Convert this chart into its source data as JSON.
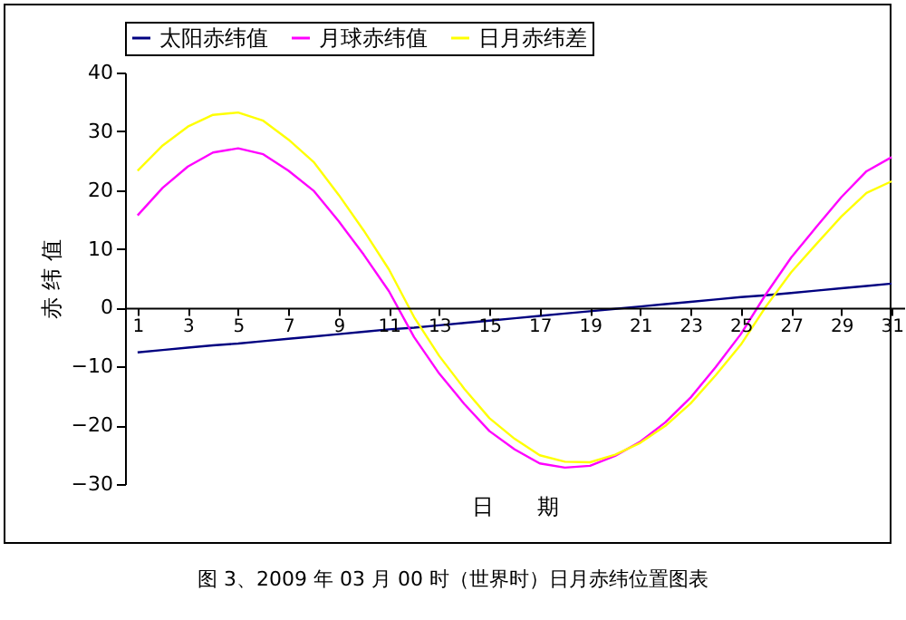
{
  "chart_data": {
    "type": "line",
    "ylabel": "赤 纬 值",
    "xlabel": "日　　期",
    "annotations": [
      "图 3、2009 年 03 月 00 时（世界时）日月赤纬位置图表"
    ],
    "x": [
      1,
      2,
      3,
      4,
      5,
      6,
      7,
      8,
      9,
      10,
      11,
      12,
      13,
      14,
      15,
      16,
      17,
      18,
      19,
      20,
      21,
      22,
      23,
      24,
      25,
      26,
      27,
      28,
      29,
      30,
      31
    ],
    "xlim": [
      0.5,
      31.5
    ],
    "xticks": [
      1,
      3,
      5,
      7,
      9,
      11,
      13,
      15,
      17,
      19,
      21,
      23,
      25,
      27,
      29,
      31
    ],
    "ylim": [
      -30,
      40
    ],
    "yticks": [
      -30,
      -20,
      -10,
      0,
      10,
      20,
      30,
      40
    ],
    "grid": false,
    "legend": "top",
    "marker": "none",
    "line_style": "solid",
    "series": [
      {
        "name": "太阳赤纬值",
        "color": "#000080",
        "values": [
          -7.6,
          -7.2,
          -6.8,
          -6.4,
          -6.1,
          -5.7,
          -5.3,
          -4.9,
          -4.5,
          -4.1,
          -3.7,
          -3.4,
          -3.0,
          -2.6,
          -2.2,
          -1.8,
          -1.4,
          -1.0,
          -0.6,
          -0.2,
          0.2,
          0.6,
          1.0,
          1.4,
          1.8,
          2.1,
          2.5,
          2.9,
          3.3,
          3.7,
          4.1
        ]
      },
      {
        "name": "月球赤纬值",
        "color": "#ff00ff",
        "values": [
          15.7,
          20.4,
          24.0,
          26.4,
          27.1,
          26.1,
          23.3,
          19.9,
          14.7,
          9.0,
          2.8,
          -5.0,
          -11.2,
          -16.4,
          -21.0,
          -24.1,
          -26.5,
          -27.2,
          -26.9,
          -25.2,
          -22.8,
          -19.5,
          -15.3,
          -10.1,
          -4.5,
          2.3,
          8.5,
          13.7,
          18.8,
          23.2,
          25.6
        ]
      },
      {
        "name": "日月赤纬差",
        "color": "#ffff00",
        "values": [
          23.3,
          27.6,
          30.8,
          32.8,
          33.2,
          31.8,
          28.6,
          24.8,
          19.2,
          13.1,
          6.5,
          -1.6,
          -8.2,
          -13.8,
          -18.8,
          -22.3,
          -25.1,
          -26.2,
          -26.3,
          -25.0,
          -23.0,
          -20.1,
          -16.3,
          -11.5,
          -6.3,
          0.2,
          6.0,
          10.8,
          15.5,
          19.5,
          21.5
        ]
      }
    ]
  }
}
